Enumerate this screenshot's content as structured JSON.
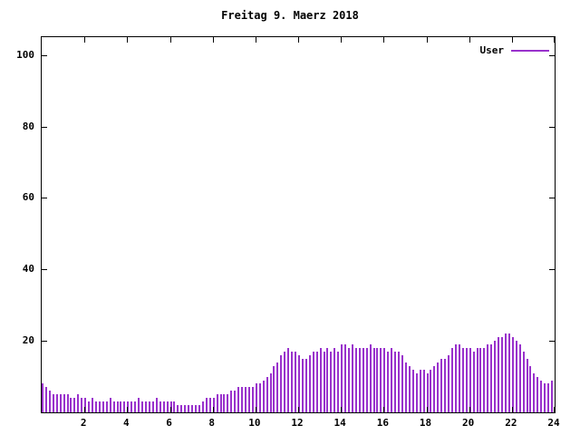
{
  "title": "Freitag 9. Maerz 2018",
  "legend": {
    "label": "User",
    "color": "#9932cc"
  },
  "chart_data": {
    "type": "bar",
    "title": "Freitag 9. Maerz 2018",
    "series_name": "User",
    "bar_color": "#9932cc",
    "xlabel": "",
    "ylabel": "",
    "xlim": [
      0,
      24
    ],
    "ylim": [
      0,
      105
    ],
    "xticks": [
      2,
      4,
      6,
      8,
      10,
      12,
      14,
      16,
      18,
      20,
      22,
      24
    ],
    "yticks": [
      20,
      40,
      60,
      80,
      100
    ],
    "grid": false,
    "legend_position": "top-right",
    "x_unit": "hour-of-day",
    "interval_minutes": 10,
    "values": [
      8,
      7,
      6,
      5,
      5,
      5,
      5,
      5,
      4,
      4,
      5,
      4,
      4,
      3,
      4,
      3,
      3,
      3,
      3,
      4,
      3,
      3,
      3,
      3,
      3,
      3,
      3,
      4,
      3,
      3,
      3,
      3,
      4,
      3,
      3,
      3,
      3,
      3,
      2,
      2,
      2,
      2,
      2,
      2,
      2,
      3,
      4,
      4,
      4,
      5,
      5,
      5,
      5,
      6,
      6,
      7,
      7,
      7,
      7,
      7,
      8,
      8,
      9,
      10,
      11,
      13,
      14,
      16,
      17,
      18,
      17,
      17,
      16,
      15,
      15,
      16,
      17,
      17,
      18,
      17,
      18,
      17,
      18,
      17,
      19,
      19,
      18,
      19,
      18,
      18,
      18,
      18,
      19,
      18,
      18,
      18,
      18,
      17,
      18,
      17,
      17,
      16,
      14,
      13,
      12,
      11,
      12,
      12,
      11,
      12,
      13,
      14,
      15,
      15,
      16,
      18,
      19,
      19,
      18,
      18,
      18,
      17,
      18,
      18,
      18,
      19,
      19,
      20,
      21,
      21,
      22,
      22,
      21,
      20,
      19,
      17,
      15,
      13,
      11,
      10,
      9,
      8,
      8,
      9
    ]
  }
}
